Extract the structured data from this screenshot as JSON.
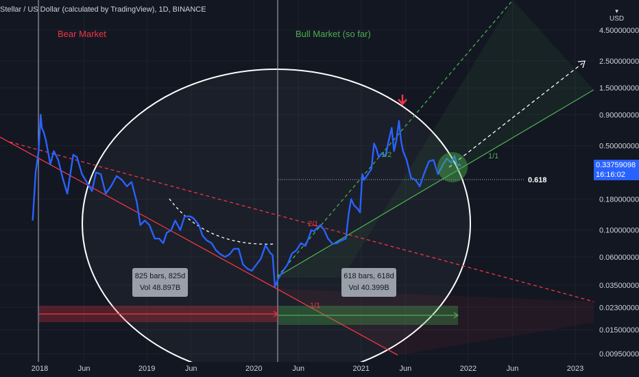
{
  "header": {
    "title": "Stellar / US Dollar (calculated by TradingView), 1D, BINANCE"
  },
  "currency": {
    "unit": "USD",
    "mark": "▼"
  },
  "price_tag": {
    "value": "0.33759098",
    "countdown": "16:16:02"
  },
  "annotations": {
    "bear_market": "Bear Market",
    "bull_market": "Bull Market (so far)",
    "fib_618": "0.618",
    "ratio_2_1": "2/1",
    "ratio_1_1_top": "1/1",
    "ratio_1_1_bottom": "1/1",
    "ratio_1_2": "1/2"
  },
  "bars_box_left": {
    "line1": "825 bars, 825d",
    "line2": "Vol 48.897B"
  },
  "bars_box_right": {
    "line1": "618 bars, 618d",
    "line2": "Vol 40.399B"
  },
  "colors": {
    "background": "#131722",
    "price_line": "#2962ff",
    "bear": "#f23645",
    "bull": "#4caf50",
    "axis_text": "#d1d4dc",
    "ellipse": "#ffffff"
  },
  "chart_data": {
    "type": "line",
    "title": "Stellar / US Dollar (calculated by TradingView), 1D, BINANCE",
    "y_scale": "log",
    "ylim": [
      0.0095,
      7.5
    ],
    "y_ticks": [
      {
        "label": "4.50000000",
        "value": 4.5
      },
      {
        "label": "2.50000000",
        "value": 2.5
      },
      {
        "label": "1.50000000",
        "value": 1.5
      },
      {
        "label": "0.90000000",
        "value": 0.9
      },
      {
        "label": "0.50000000",
        "value": 0.5
      },
      {
        "label": "0.18000000",
        "value": 0.18
      },
      {
        "label": "0.10000000",
        "value": 0.1
      },
      {
        "label": "0.06000000",
        "value": 0.06
      },
      {
        "label": "0.03500000",
        "value": 0.035
      },
      {
        "label": "0.02300000",
        "value": 0.023
      },
      {
        "label": "0.01500000",
        "value": 0.015
      },
      {
        "label": "0.00950000",
        "value": 0.0095
      }
    ],
    "xlim": [
      "2017-12-05",
      "2023-02-20"
    ],
    "x_ticks": [
      {
        "label": "2018",
        "date": "2018-01-01"
      },
      {
        "label": "Jun",
        "date": "2018-06-01"
      },
      {
        "label": "2019",
        "date": "2019-01-01"
      },
      {
        "label": "Jun",
        "date": "2019-06-01"
      },
      {
        "label": "2020",
        "date": "2020-01-01"
      },
      {
        "label": "Jun",
        "date": "2020-06-01"
      },
      {
        "label": "2021",
        "date": "2021-01-01"
      },
      {
        "label": "Jun",
        "date": "2021-06-01"
      },
      {
        "label": "2022",
        "date": "2022-01-01"
      },
      {
        "label": "Jun",
        "date": "2022-06-01"
      },
      {
        "label": "2023",
        "date": "2023-01-01"
      }
    ],
    "series": [
      {
        "color": "#2962ff",
        "points": [
          [
            "2017-12-08",
            0.12
          ],
          [
            "2017-12-18",
            0.3
          ],
          [
            "2017-12-28",
            0.45
          ],
          [
            "2018-01-04",
            0.9
          ],
          [
            "2018-01-08",
            0.7
          ],
          [
            "2018-01-14",
            0.65
          ],
          [
            "2018-01-22",
            0.55
          ],
          [
            "2018-02-06",
            0.35
          ],
          [
            "2018-02-18",
            0.45
          ],
          [
            "2018-03-05",
            0.38
          ],
          [
            "2018-03-20",
            0.27
          ],
          [
            "2018-04-05",
            0.2
          ],
          [
            "2018-04-25",
            0.42
          ],
          [
            "2018-05-08",
            0.4
          ],
          [
            "2018-05-25",
            0.29
          ],
          [
            "2018-06-10",
            0.25
          ],
          [
            "2018-06-28",
            0.21
          ],
          [
            "2018-07-12",
            0.3
          ],
          [
            "2018-07-28",
            0.29
          ],
          [
            "2018-08-14",
            0.2
          ],
          [
            "2018-09-01",
            0.23
          ],
          [
            "2018-09-20",
            0.28
          ],
          [
            "2018-10-08",
            0.26
          ],
          [
            "2018-10-25",
            0.23
          ],
          [
            "2018-11-10",
            0.25
          ],
          [
            "2018-11-28",
            0.17
          ],
          [
            "2018-12-10",
            0.11
          ],
          [
            "2018-12-25",
            0.12
          ],
          [
            "2019-01-10",
            0.11
          ],
          [
            "2019-01-28",
            0.085
          ],
          [
            "2019-02-12",
            0.085
          ],
          [
            "2019-02-26",
            0.078
          ],
          [
            "2019-03-10",
            0.095
          ],
          [
            "2019-03-25",
            0.1
          ],
          [
            "2019-04-08",
            0.12
          ],
          [
            "2019-04-25",
            0.1
          ],
          [
            "2019-05-10",
            0.13
          ],
          [
            "2019-05-28",
            0.13
          ],
          [
            "2019-06-10",
            0.125
          ],
          [
            "2019-06-28",
            0.11
          ],
          [
            "2019-07-10",
            0.09
          ],
          [
            "2019-07-25",
            0.082
          ],
          [
            "2019-08-10",
            0.078
          ],
          [
            "2019-08-25",
            0.068
          ],
          [
            "2019-09-10",
            0.063
          ],
          [
            "2019-09-25",
            0.06
          ],
          [
            "2019-10-10",
            0.063
          ],
          [
            "2019-10-25",
            0.07
          ],
          [
            "2019-11-10",
            0.07
          ],
          [
            "2019-11-25",
            0.052
          ],
          [
            "2019-12-10",
            0.048
          ],
          [
            "2019-12-25",
            0.046
          ],
          [
            "2020-01-10",
            0.052
          ],
          [
            "2020-01-25",
            0.058
          ],
          [
            "2020-02-10",
            0.075
          ],
          [
            "2020-02-25",
            0.065
          ],
          [
            "2020-03-05",
            0.062
          ],
          [
            "2020-03-13",
            0.034
          ],
          [
            "2020-03-25",
            0.04
          ],
          [
            "2020-04-10",
            0.046
          ],
          [
            "2020-04-25",
            0.052
          ],
          [
            "2020-05-10",
            0.064
          ],
          [
            "2020-05-25",
            0.068
          ],
          [
            "2020-06-10",
            0.078
          ],
          [
            "2020-06-25",
            0.074
          ],
          [
            "2020-07-05",
            0.085
          ],
          [
            "2020-07-15",
            0.1
          ],
          [
            "2020-07-25",
            0.098
          ],
          [
            "2020-08-05",
            0.105
          ],
          [
            "2020-08-15",
            0.11
          ],
          [
            "2020-08-28",
            0.1
          ],
          [
            "2020-09-10",
            0.085
          ],
          [
            "2020-09-25",
            0.077
          ],
          [
            "2020-10-10",
            0.078
          ],
          [
            "2020-10-25",
            0.082
          ],
          [
            "2020-11-10",
            0.085
          ],
          [
            "2020-11-20",
            0.14
          ],
          [
            "2020-11-28",
            0.18
          ],
          [
            "2020-12-08",
            0.16
          ],
          [
            "2020-12-20",
            0.15
          ],
          [
            "2020-12-28",
            0.14
          ],
          [
            "2021-01-05",
            0.29
          ],
          [
            "2021-01-12",
            0.26
          ],
          [
            "2021-01-20",
            0.28
          ],
          [
            "2021-01-28",
            0.3
          ],
          [
            "2021-02-05",
            0.32
          ],
          [
            "2021-02-14",
            0.52
          ],
          [
            "2021-02-22",
            0.47
          ],
          [
            "2021-03-02",
            0.4
          ],
          [
            "2021-03-12",
            0.43
          ],
          [
            "2021-03-25",
            0.41
          ],
          [
            "2021-04-05",
            0.55
          ],
          [
            "2021-04-15",
            0.7
          ],
          [
            "2021-04-23",
            0.45
          ],
          [
            "2021-05-01",
            0.55
          ],
          [
            "2021-05-10",
            0.8
          ],
          [
            "2021-05-17",
            0.55
          ],
          [
            "2021-05-24",
            0.45
          ],
          [
            "2021-06-05",
            0.38
          ],
          [
            "2021-06-20",
            0.27
          ],
          [
            "2021-07-05",
            0.26
          ],
          [
            "2021-07-20",
            0.23
          ],
          [
            "2021-08-05",
            0.3
          ],
          [
            "2021-08-20",
            0.37
          ],
          [
            "2021-09-05",
            0.38
          ],
          [
            "2021-09-20",
            0.29
          ],
          [
            "2021-10-05",
            0.34
          ],
          [
            "2021-10-20",
            0.39
          ],
          [
            "2021-11-05",
            0.36
          ],
          [
            "2021-11-15",
            0.41
          ],
          [
            "2021-11-25",
            0.34
          ],
          [
            "2021-12-02",
            0.35
          ],
          [
            "2021-12-06",
            0.3376
          ]
        ]
      }
    ]
  }
}
